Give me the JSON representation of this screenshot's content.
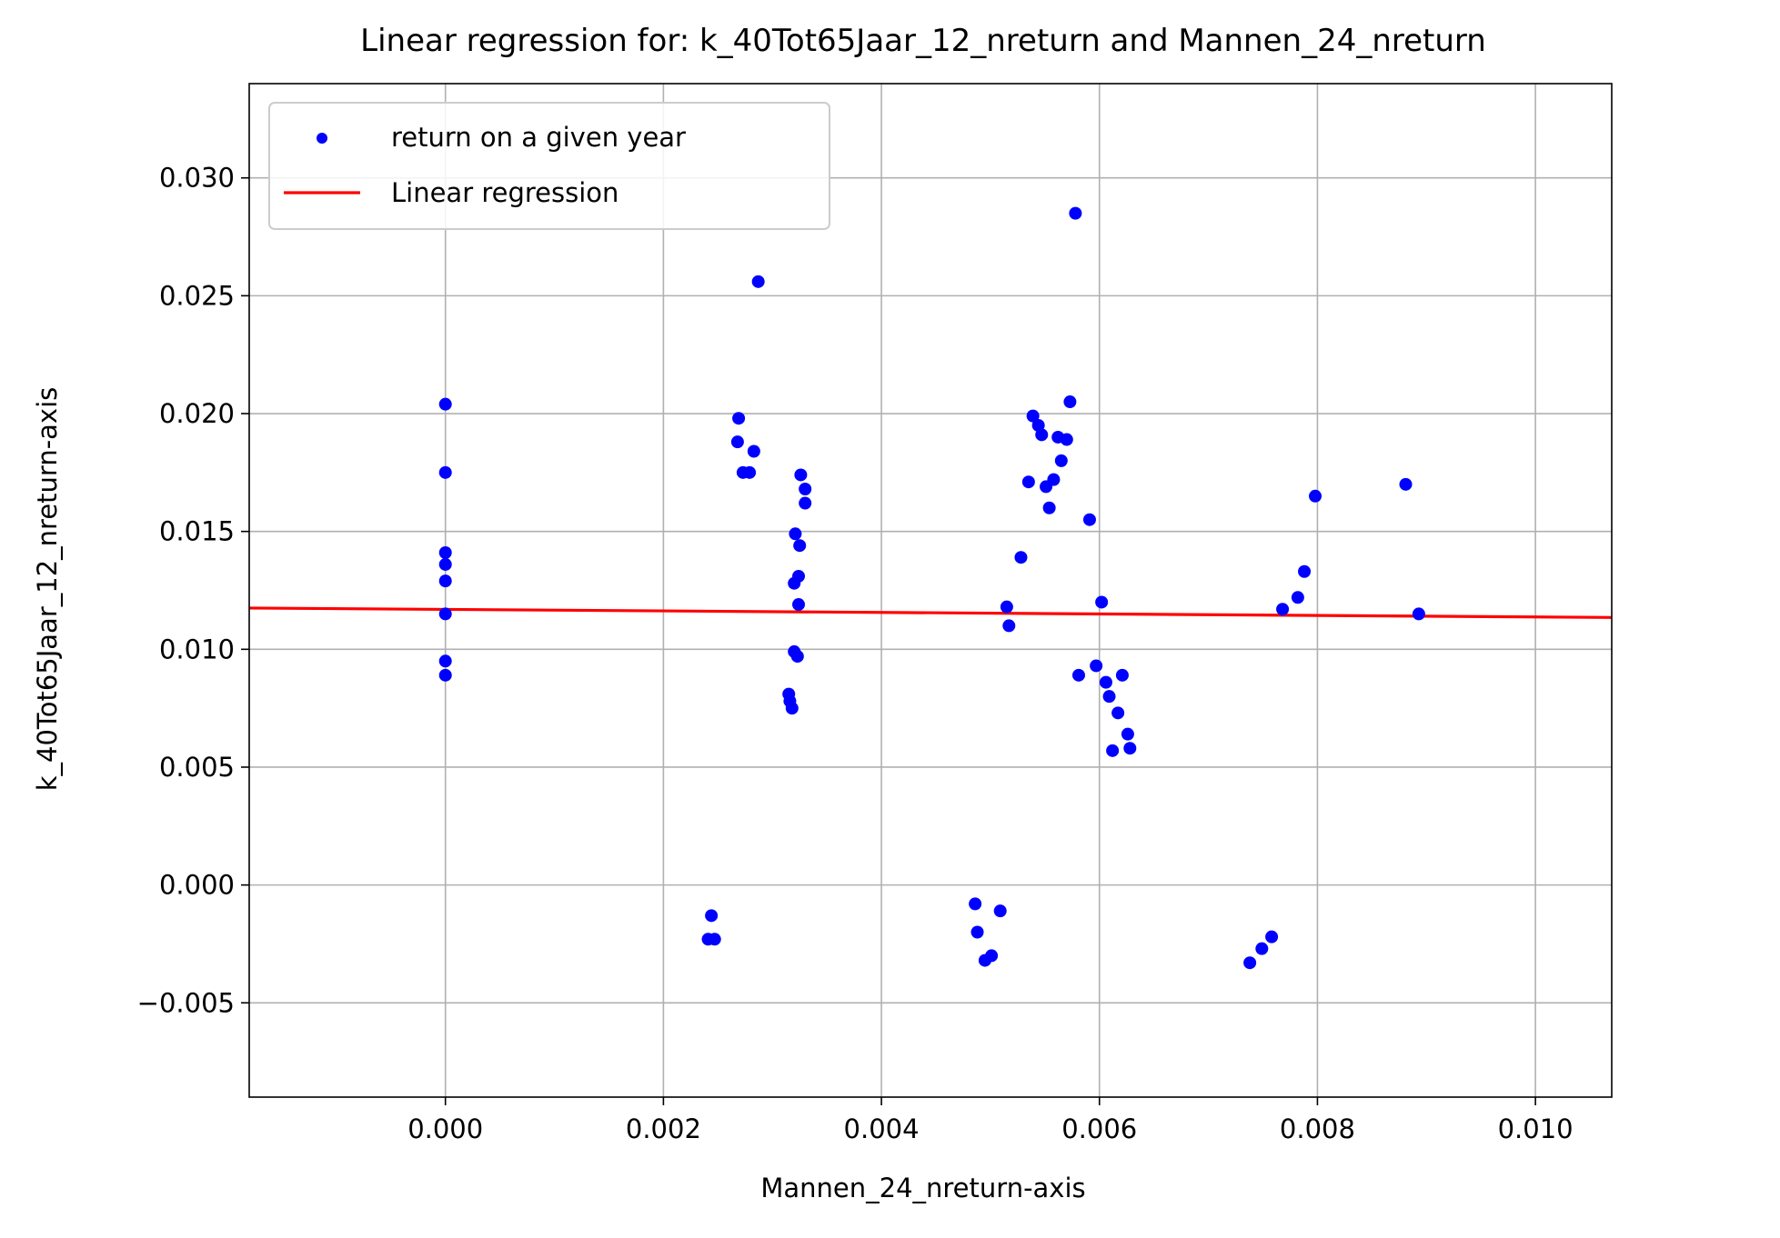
{
  "chart_data": {
    "type": "scatter",
    "title": "Linear regression for: k_40Tot65Jaar_12_nreturn and Mannen_24_nreturn",
    "xlabel": "Mannen_24_nreturn-axis",
    "ylabel": "k_40Tot65Jaar_12_nreturn-axis",
    "xlim": [
      -0.0018,
      0.0107
    ],
    "ylim": [
      -0.009,
      0.034
    ],
    "grid": true,
    "legend_position": "top-left",
    "x_ticks": [
      0.0,
      0.002,
      0.004,
      0.006,
      0.008,
      0.01
    ],
    "x_tick_labels": [
      "0.000",
      "0.002",
      "0.004",
      "0.006",
      "0.008",
      "0.010"
    ],
    "y_ticks": [
      -0.005,
      0.0,
      0.005,
      0.01,
      0.015,
      0.02,
      0.025,
      0.03
    ],
    "y_tick_labels": [
      "−0.005",
      "0.000",
      "0.005",
      "0.010",
      "0.015",
      "0.020",
      "0.025",
      "0.030"
    ],
    "series": [
      {
        "name": "return on a given year",
        "kind": "scatter",
        "color": "#0000ff",
        "points": [
          [
            0.0,
            0.0204
          ],
          [
            0.0,
            0.0175
          ],
          [
            0.0,
            0.0141
          ],
          [
            0.0,
            0.0136
          ],
          [
            0.0,
            0.0129
          ],
          [
            0.0,
            0.0115
          ],
          [
            0.0,
            0.0095
          ],
          [
            0.0,
            0.0089
          ],
          [
            0.00244,
            -0.0013
          ],
          [
            0.00241,
            -0.0023
          ],
          [
            0.00247,
            -0.0023
          ],
          [
            0.00269,
            0.0198
          ],
          [
            0.00268,
            0.0188
          ],
          [
            0.00283,
            0.0184
          ],
          [
            0.00273,
            0.0175
          ],
          [
            0.00279,
            0.0175
          ],
          [
            0.00287,
            0.0256
          ],
          [
            0.00326,
            0.0174
          ],
          [
            0.0033,
            0.0168
          ],
          [
            0.0033,
            0.0162
          ],
          [
            0.00321,
            0.0149
          ],
          [
            0.00325,
            0.0144
          ],
          [
            0.00324,
            0.0131
          ],
          [
            0.0032,
            0.0128
          ],
          [
            0.00324,
            0.0119
          ],
          [
            0.0032,
            0.0099
          ],
          [
            0.00323,
            0.0097
          ],
          [
            0.00315,
            0.0081
          ],
          [
            0.00316,
            0.0078
          ],
          [
            0.00318,
            0.0075
          ],
          [
            0.00486,
            -0.0008
          ],
          [
            0.00488,
            -0.002
          ],
          [
            0.00509,
            -0.0011
          ],
          [
            0.00501,
            -0.003
          ],
          [
            0.00495,
            -0.0032
          ],
          [
            0.00515,
            0.0118
          ],
          [
            0.00517,
            0.011
          ],
          [
            0.00528,
            0.0139
          ],
          [
            0.00535,
            0.0171
          ],
          [
            0.00539,
            0.0199
          ],
          [
            0.00544,
            0.0195
          ],
          [
            0.00547,
            0.0191
          ],
          [
            0.00551,
            0.0169
          ],
          [
            0.00554,
            0.016
          ],
          [
            0.00558,
            0.0172
          ],
          [
            0.00562,
            0.019
          ],
          [
            0.00565,
            0.018
          ],
          [
            0.0057,
            0.0189
          ],
          [
            0.00573,
            0.0205
          ],
          [
            0.00578,
            0.0285
          ],
          [
            0.00581,
            0.0089
          ],
          [
            0.00591,
            0.0155
          ],
          [
            0.00597,
            0.0093
          ],
          [
            0.00602,
            0.012
          ],
          [
            0.00606,
            0.0086
          ],
          [
            0.00609,
            0.008
          ],
          [
            0.00612,
            0.0057
          ],
          [
            0.00617,
            0.0073
          ],
          [
            0.00621,
            0.0089
          ],
          [
            0.00626,
            0.0064
          ],
          [
            0.00628,
            0.0058
          ],
          [
            0.00738,
            -0.0033
          ],
          [
            0.00749,
            -0.0027
          ],
          [
            0.00758,
            -0.0022
          ],
          [
            0.00768,
            0.0117
          ],
          [
            0.00782,
            0.0122
          ],
          [
            0.00788,
            0.0133
          ],
          [
            0.00798,
            0.0165
          ],
          [
            0.00881,
            0.017
          ],
          [
            0.00893,
            0.0115
          ]
        ]
      },
      {
        "name": "Linear regression",
        "kind": "line",
        "color": "#ff0000",
        "points": [
          [
            -0.0018,
            0.01175
          ],
          [
            0.0107,
            0.01135
          ]
        ]
      }
    ]
  }
}
